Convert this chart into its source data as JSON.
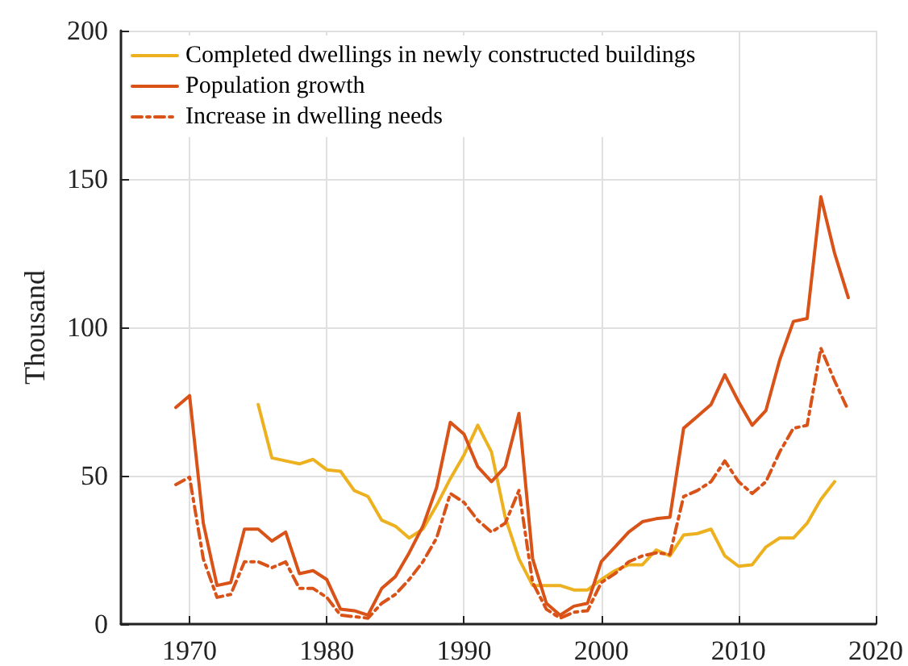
{
  "chart_data": {
    "type": "line",
    "ylabel": "Thousand",
    "xlim": [
      1965,
      2020
    ],
    "xticks": [
      1970,
      1980,
      1990,
      2000,
      2010,
      2020
    ],
    "ylim": [
      0,
      200
    ],
    "yticks": [
      0,
      50,
      100,
      150,
      200
    ],
    "grid": true,
    "legend": "top left",
    "marker": "none",
    "x": [
      1969,
      1970,
      1971,
      1972,
      1973,
      1974,
      1975,
      1976,
      1977,
      1978,
      1979,
      1980,
      1981,
      1982,
      1983,
      1984,
      1985,
      1986,
      1987,
      1988,
      1989,
      1990,
      1991,
      1992,
      1993,
      1994,
      1995,
      1996,
      1997,
      1998,
      1999,
      2000,
      2001,
      2002,
      2003,
      2004,
      2005,
      2006,
      2007,
      2008,
      2009,
      2010,
      2011,
      2012,
      2013,
      2014,
      2015,
      2016,
      2017,
      2018
    ],
    "series": [
      {
        "name": "Completed dwellings in newly constructed buildings",
        "color": "#edb120",
        "line_style": "solid",
        "values": [
          null,
          null,
          null,
          null,
          null,
          null,
          74,
          56,
          55,
          54,
          55.5,
          52,
          51.5,
          45,
          43,
          35,
          33,
          29,
          32,
          40,
          49,
          57,
          67,
          58,
          36,
          22,
          13,
          13,
          13,
          11.5,
          11.5,
          15,
          18,
          20,
          20,
          25,
          23,
          30,
          30.5,
          32,
          23,
          19.5,
          20,
          26,
          29,
          29,
          34,
          42,
          48,
          null
        ]
      },
      {
        "name": "Population growth",
        "color": "#d95319",
        "line_style": "solid",
        "values": [
          73,
          77,
          34,
          13,
          14,
          32,
          32,
          28,
          31,
          17,
          18,
          15,
          5,
          4.5,
          3,
          12,
          16,
          24,
          33,
          46,
          68,
          64,
          53,
          48,
          53,
          71,
          22,
          7,
          3,
          6,
          7,
          21,
          26,
          31,
          34.5,
          35.5,
          36,
          66,
          70,
          74,
          84,
          75,
          67,
          72,
          89,
          102,
          103,
          144,
          125,
          110
        ]
      },
      {
        "name": "Increase in dwelling needs",
        "color": "#d95319",
        "line_style": "dashed",
        "values": [
          47,
          49.5,
          22,
          9,
          10,
          21,
          21,
          19,
          21,
          12,
          12,
          9,
          3,
          2.5,
          2,
          7,
          10,
          15,
          21,
          29,
          44,
          41,
          35,
          31,
          34,
          45,
          14,
          5,
          2,
          4,
          4.5,
          14,
          17,
          21,
          23,
          24,
          23.5,
          43,
          45,
          48,
          55,
          48,
          44,
          48,
          58,
          66,
          67,
          93,
          82,
          72
        ]
      }
    ]
  }
}
